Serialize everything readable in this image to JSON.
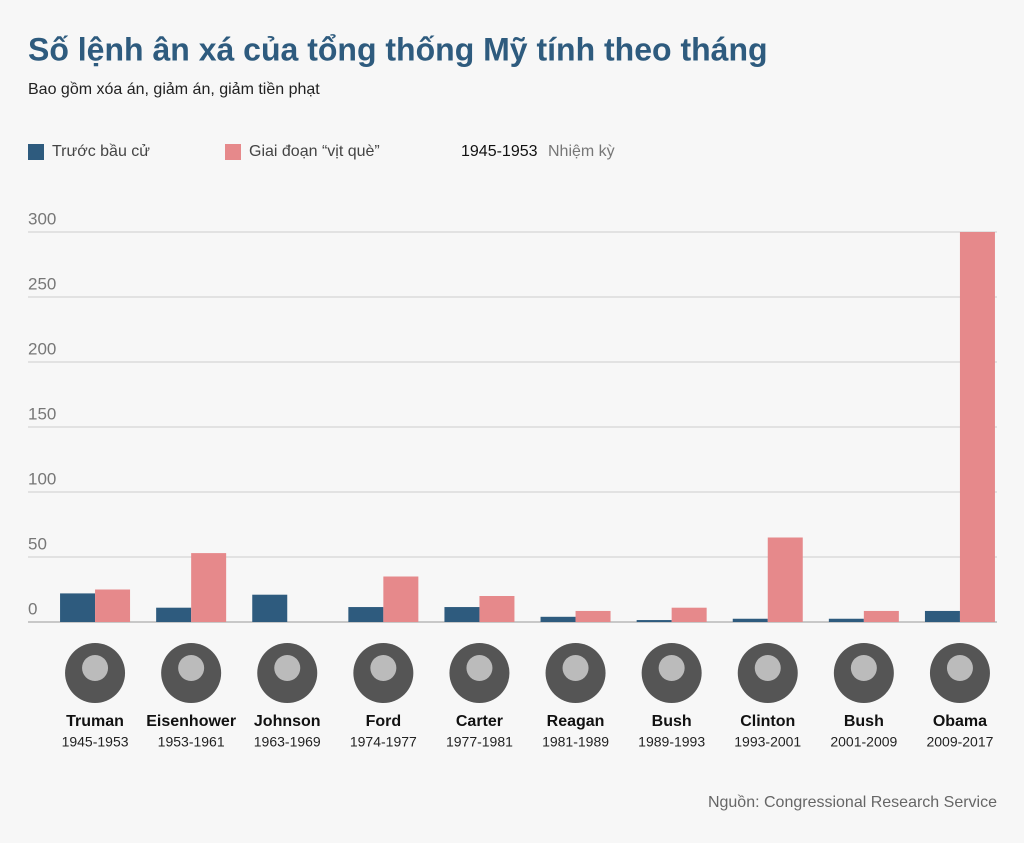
{
  "chart_data": {
    "type": "bar",
    "title": "Số lệnh ân xá của tổng thống Mỹ tính theo tháng",
    "subtitle": "Bao gồm xóa án, giảm án, giảm tiền phạt",
    "term_legend": {
      "example": "1945-1953",
      "label": "Nhiệm kỳ"
    },
    "categories": [
      "Truman",
      "Eisenhower",
      "Johnson",
      "Ford",
      "Carter",
      "Reagan",
      "Bush",
      "Clinton",
      "Bush",
      "Obama"
    ],
    "terms": [
      "1945-1953",
      "1953-1961",
      "1963-1969",
      "1974-1977",
      "1977-1981",
      "1981-1989",
      "1989-1993",
      "1993-2001",
      "2001-2009",
      "2009-2017"
    ],
    "series": [
      {
        "name": "Trước bầu cử",
        "color": "#2e5b7e",
        "values": [
          22,
          11,
          21,
          11.5,
          11.5,
          4,
          1.5,
          2.5,
          2.5,
          8.5
        ]
      },
      {
        "name": "Giai đoạn “vịt què”",
        "color": "#e6898b",
        "values": [
          25,
          53,
          0,
          35,
          20,
          8.5,
          11,
          65,
          8.5,
          300
        ]
      }
    ],
    "ylim": [
      0,
      300
    ],
    "yticks": [
      0,
      50,
      100,
      150,
      200,
      250,
      300
    ],
    "grid": true,
    "source": "Nguồn: Congressional Research Service"
  }
}
